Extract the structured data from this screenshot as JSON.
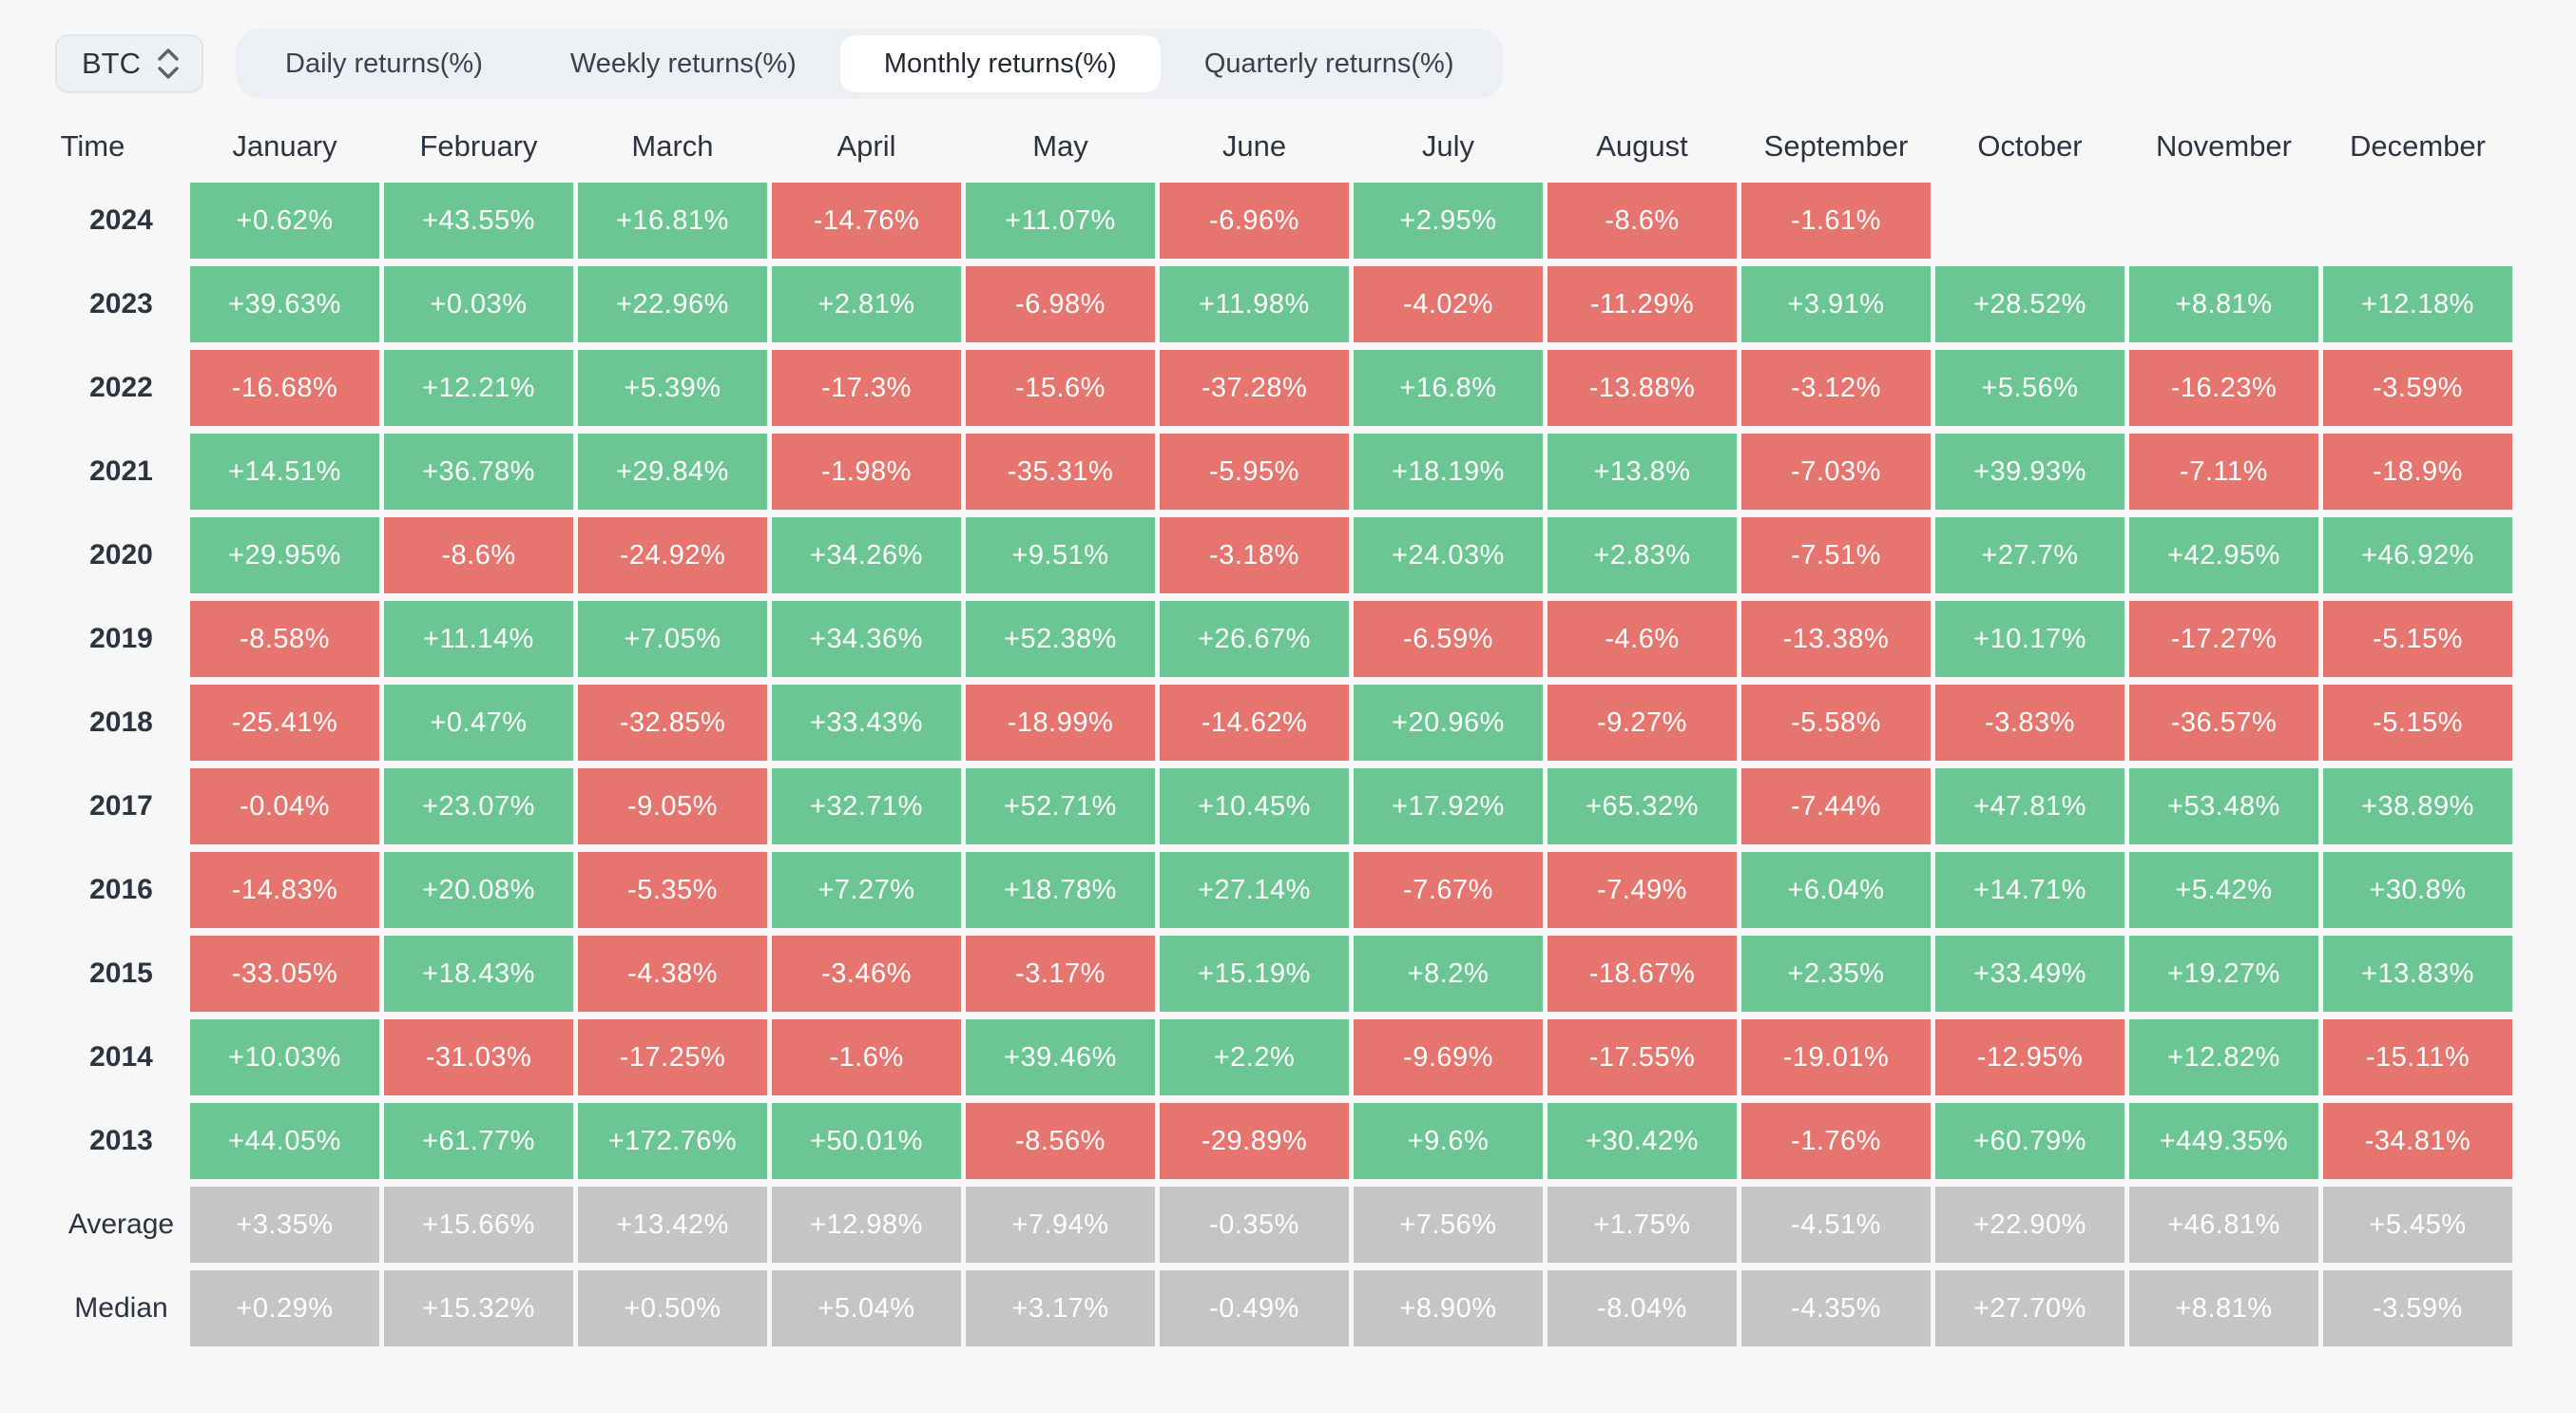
{
  "controls": {
    "asset_selector": {
      "value": "BTC"
    },
    "tabs": [
      {
        "label": "Daily returns(%)",
        "active": false
      },
      {
        "label": "Weekly returns(%)",
        "active": false
      },
      {
        "label": "Monthly returns(%)",
        "active": true
      },
      {
        "label": "Quarterly returns(%)",
        "active": false
      }
    ]
  },
  "colors": {
    "positive": "#6cc693",
    "negative": "#e7756f",
    "summary_neutral": "#c5c4c7",
    "page_background": "#f7f7f8",
    "tabbar_background": "#eceff3",
    "text_dark": "#2b3440"
  },
  "chart_data": {
    "type": "heatmap",
    "columns": [
      "Time",
      "January",
      "February",
      "March",
      "April",
      "May",
      "June",
      "July",
      "August",
      "September",
      "October",
      "November",
      "December"
    ],
    "rows": [
      {
        "label": "2024",
        "summary": false,
        "values": [
          "+0.62%",
          "+43.55%",
          "+16.81%",
          "-14.76%",
          "+11.07%",
          "-6.96%",
          "+2.95%",
          "-8.6%",
          "-1.61%",
          "",
          "",
          ""
        ]
      },
      {
        "label": "2023",
        "summary": false,
        "values": [
          "+39.63%",
          "+0.03%",
          "+22.96%",
          "+2.81%",
          "-6.98%",
          "+11.98%",
          "-4.02%",
          "-11.29%",
          "+3.91%",
          "+28.52%",
          "+8.81%",
          "+12.18%"
        ]
      },
      {
        "label": "2022",
        "summary": false,
        "values": [
          "-16.68%",
          "+12.21%",
          "+5.39%",
          "-17.3%",
          "-15.6%",
          "-37.28%",
          "+16.8%",
          "-13.88%",
          "-3.12%",
          "+5.56%",
          "-16.23%",
          "-3.59%"
        ]
      },
      {
        "label": "2021",
        "summary": false,
        "values": [
          "+14.51%",
          "+36.78%",
          "+29.84%",
          "-1.98%",
          "-35.31%",
          "-5.95%",
          "+18.19%",
          "+13.8%",
          "-7.03%",
          "+39.93%",
          "-7.11%",
          "-18.9%"
        ]
      },
      {
        "label": "2020",
        "summary": false,
        "values": [
          "+29.95%",
          "-8.6%",
          "-24.92%",
          "+34.26%",
          "+9.51%",
          "-3.18%",
          "+24.03%",
          "+2.83%",
          "-7.51%",
          "+27.7%",
          "+42.95%",
          "+46.92%"
        ]
      },
      {
        "label": "2019",
        "summary": false,
        "values": [
          "-8.58%",
          "+11.14%",
          "+7.05%",
          "+34.36%",
          "+52.38%",
          "+26.67%",
          "-6.59%",
          "-4.6%",
          "-13.38%",
          "+10.17%",
          "-17.27%",
          "-5.15%"
        ]
      },
      {
        "label": "2018",
        "summary": false,
        "values": [
          "-25.41%",
          "+0.47%",
          "-32.85%",
          "+33.43%",
          "-18.99%",
          "-14.62%",
          "+20.96%",
          "-9.27%",
          "-5.58%",
          "-3.83%",
          "-36.57%",
          "-5.15%"
        ]
      },
      {
        "label": "2017",
        "summary": false,
        "values": [
          "-0.04%",
          "+23.07%",
          "-9.05%",
          "+32.71%",
          "+52.71%",
          "+10.45%",
          "+17.92%",
          "+65.32%",
          "-7.44%",
          "+47.81%",
          "+53.48%",
          "+38.89%"
        ]
      },
      {
        "label": "2016",
        "summary": false,
        "values": [
          "-14.83%",
          "+20.08%",
          "-5.35%",
          "+7.27%",
          "+18.78%",
          "+27.14%",
          "-7.67%",
          "-7.49%",
          "+6.04%",
          "+14.71%",
          "+5.42%",
          "+30.8%"
        ]
      },
      {
        "label": "2015",
        "summary": false,
        "values": [
          "-33.05%",
          "+18.43%",
          "-4.38%",
          "-3.46%",
          "-3.17%",
          "+15.19%",
          "+8.2%",
          "-18.67%",
          "+2.35%",
          "+33.49%",
          "+19.27%",
          "+13.83%"
        ]
      },
      {
        "label": "2014",
        "summary": false,
        "values": [
          "+10.03%",
          "-31.03%",
          "-17.25%",
          "-1.6%",
          "+39.46%",
          "+2.2%",
          "-9.69%",
          "-17.55%",
          "-19.01%",
          "-12.95%",
          "+12.82%",
          "-15.11%"
        ]
      },
      {
        "label": "2013",
        "summary": false,
        "values": [
          "+44.05%",
          "+61.77%",
          "+172.76%",
          "+50.01%",
          "-8.56%",
          "-29.89%",
          "+9.6%",
          "+30.42%",
          "-1.76%",
          "+60.79%",
          "+449.35%",
          "-34.81%"
        ]
      },
      {
        "label": "Average",
        "summary": true,
        "values": [
          "+3.35%",
          "+15.66%",
          "+13.42%",
          "+12.98%",
          "+7.94%",
          "-0.35%",
          "+7.56%",
          "+1.75%",
          "-4.51%",
          "+22.90%",
          "+46.81%",
          "+5.45%"
        ]
      },
      {
        "label": "Median",
        "summary": true,
        "values": [
          "+0.29%",
          "+15.32%",
          "+0.50%",
          "+5.04%",
          "+3.17%",
          "-0.49%",
          "+8.90%",
          "-8.04%",
          "-4.35%",
          "+27.70%",
          "+8.81%",
          "-3.59%"
        ]
      }
    ]
  }
}
